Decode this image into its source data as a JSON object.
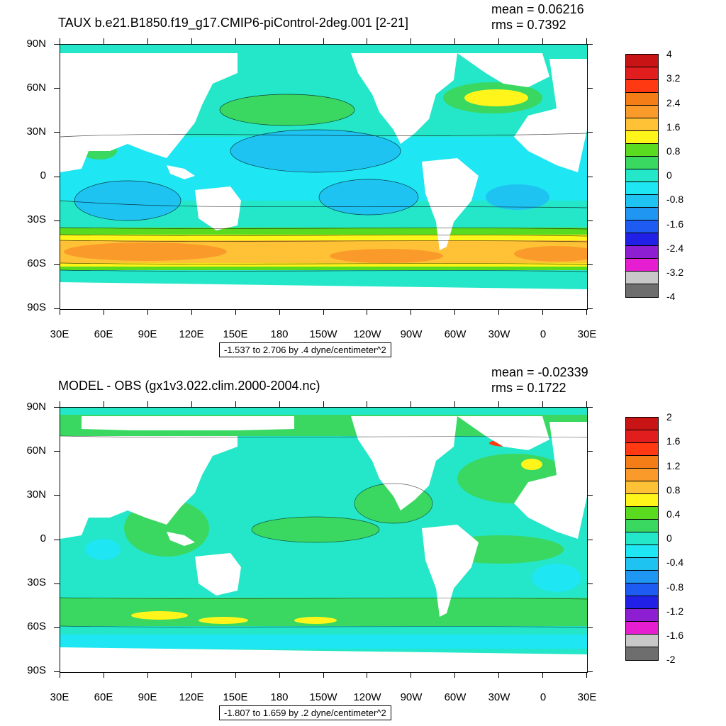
{
  "panels": [
    {
      "title": "TAUX b.e21.B1850.f19_g17.CMIP6-piControl-2deg.001 [2-21]",
      "mean": "mean = 0.06216",
      "rms": "rms = 0.7392",
      "info": "-1.537 to 2.706 by .4 dyne/centimeter^2",
      "colorbar_labels": [
        "4",
        "3.2",
        "2.4",
        "1.6",
        "0.8",
        "0",
        "-0.8",
        "-1.6",
        "-2.4",
        "-3.2",
        "-4"
      ],
      "colorbar_colors": [
        "#c81414",
        "#e11d1d",
        "#ff3a12",
        "#f57d18",
        "#fa9a2a",
        "#ffc236",
        "#fff51b",
        "#5bdb1f",
        "#3ad861",
        "#24e6c8",
        "#1ee6f2",
        "#1ec3f2",
        "#1e96f2",
        "#1e5bf2",
        "#2020e6",
        "#8e1ed2",
        "#e61ed2",
        "#c8c8c8",
        "#6e6e6e"
      ]
    },
    {
      "title": "MODEL - OBS (gx1v3.022.clim.2000-2004.nc)",
      "mean": "mean = -0.02339",
      "rms": "rms = 0.1722",
      "info": "-1.807 to 1.659 by .2 dyne/centimeter^2",
      "colorbar_labels": [
        "2",
        "1.6",
        "1.2",
        "0.8",
        "0.4",
        "0",
        "-0.4",
        "-0.8",
        "-1.2",
        "-1.6",
        "-2"
      ],
      "colorbar_colors": [
        "#c81414",
        "#e11d1d",
        "#ff3a12",
        "#f57d18",
        "#fa9a2a",
        "#ffc236",
        "#fff51b",
        "#5bdb1f",
        "#3ad861",
        "#24e6c8",
        "#1ee6f2",
        "#1ec3f2",
        "#1e96f2",
        "#1e5bf2",
        "#2020e6",
        "#8e1ed2",
        "#e61ed2",
        "#c8c8c8",
        "#6e6e6e"
      ]
    }
  ],
  "axes": {
    "lat_labels": [
      "90N",
      "60N",
      "30N",
      "0",
      "30S",
      "60S",
      "90S"
    ],
    "lon_labels": [
      "30E",
      "60E",
      "90E",
      "120E",
      "150E",
      "180",
      "150W",
      "120W",
      "90W",
      "60W",
      "30W",
      "0",
      "30E"
    ]
  }
}
